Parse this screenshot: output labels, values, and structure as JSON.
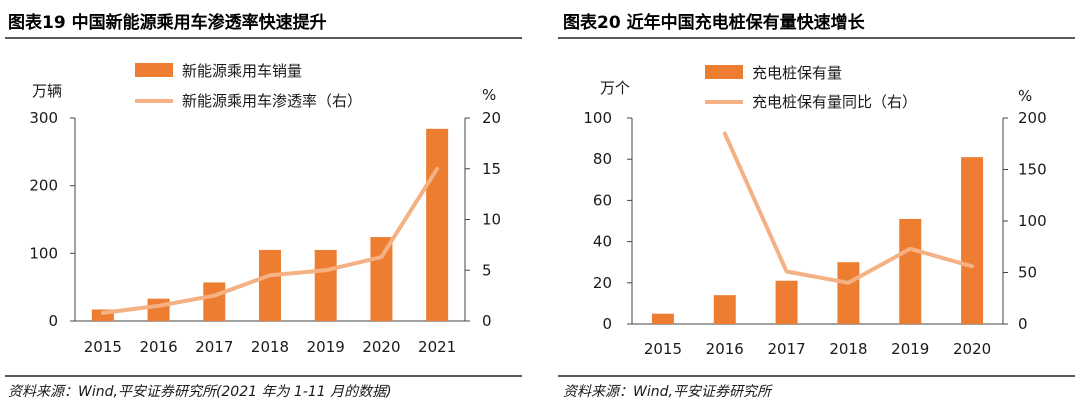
{
  "colors": {
    "bar": "#ed7d31",
    "line": "#f4b183",
    "rule": "#222222"
  },
  "chart_data": [
    {
      "type": "bar+line",
      "title": "图表19    中国新能源乘用车渗透率快速提升",
      "categories": [
        "2015",
        "2016",
        "2017",
        "2018",
        "2019",
        "2020",
        "2021"
      ],
      "series": [
        {
          "name": "新能源乘用车销量",
          "axis": "left",
          "kind": "bar",
          "values": [
            17,
            33,
            57,
            105,
            105,
            124,
            284
          ]
        },
        {
          "name": "新能源乘用车渗透率（右）",
          "axis": "right",
          "kind": "line",
          "values": [
            0.8,
            1.5,
            2.5,
            4.5,
            5.0,
            6.3,
            15.0
          ]
        }
      ],
      "left_axis": {
        "unit": "万辆",
        "min": 0,
        "max": 300,
        "ticks": [
          0,
          100,
          200,
          300
        ]
      },
      "right_axis": {
        "unit": "%",
        "min": 0,
        "max": 20,
        "ticks": [
          0,
          5,
          10,
          15,
          20
        ]
      },
      "source": "资料来源：Wind,平安证券研究所(2021 年为 1-11 月的数据)"
    },
    {
      "type": "bar+line",
      "title": "图表20    近年中国充电桩保有量快速增长",
      "categories": [
        "2015",
        "2016",
        "2017",
        "2018",
        "2019",
        "2020"
      ],
      "series": [
        {
          "name": "充电桩保有量",
          "axis": "left",
          "kind": "bar",
          "values": [
            5,
            14,
            21,
            30,
            51,
            81
          ]
        },
        {
          "name": "充电桩保有量同比（右）",
          "axis": "right",
          "kind": "line",
          "values": [
            null,
            185,
            51,
            40,
            73,
            56
          ]
        }
      ],
      "left_axis": {
        "unit": "万个",
        "min": 0,
        "max": 100,
        "ticks": [
          0,
          20,
          40,
          60,
          80,
          100
        ]
      },
      "right_axis": {
        "unit": "%",
        "min": 0,
        "max": 200,
        "ticks": [
          0,
          50,
          100,
          150,
          200
        ]
      },
      "source": "资料来源：Wind,平安证券研究所"
    }
  ]
}
